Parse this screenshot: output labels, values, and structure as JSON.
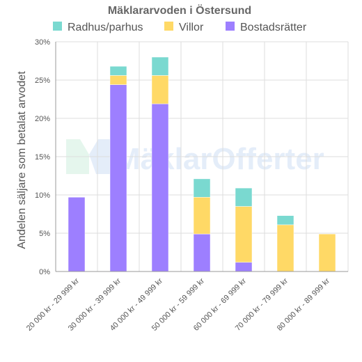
{
  "chart_data": {
    "type": "bar",
    "stacked": true,
    "title": "Mäklararvoden i Östersund",
    "ylabel": "Andelen säljare som betalat arvodet",
    "xlabel": "",
    "ylim": [
      0,
      30
    ],
    "y_ticks": [
      "0%",
      "5%",
      "10%",
      "15%",
      "20%",
      "25%",
      "30%"
    ],
    "grid": true,
    "legend_position": "top",
    "categories": [
      "20 000 kr - 29 999 kr",
      "30 000 kr - 39 999 kr",
      "40 000 kr - 49 999 kr",
      "50 000 kr - 59 999 kr",
      "60 000 kr - 69 999 kr",
      "70 000 kr - 79 999 kr",
      "80 000 kr - 89 999 kr"
    ],
    "series": [
      {
        "name": "Radhus/parhus",
        "color": "#7ad9d0",
        "values": [
          0,
          1.2,
          2.4,
          2.4,
          2.4,
          1.2,
          0
        ]
      },
      {
        "name": "Villor",
        "color": "#ffd966",
        "values": [
          0,
          1.2,
          3.7,
          4.8,
          7.3,
          6.1,
          4.9
        ]
      },
      {
        "name": "Bostadsrätter",
        "color": "#9d7fff",
        "values": [
          9.7,
          24.4,
          21.9,
          4.9,
          1.2,
          0,
          0
        ]
      }
    ],
    "watermark": "MäklarOfferter"
  }
}
